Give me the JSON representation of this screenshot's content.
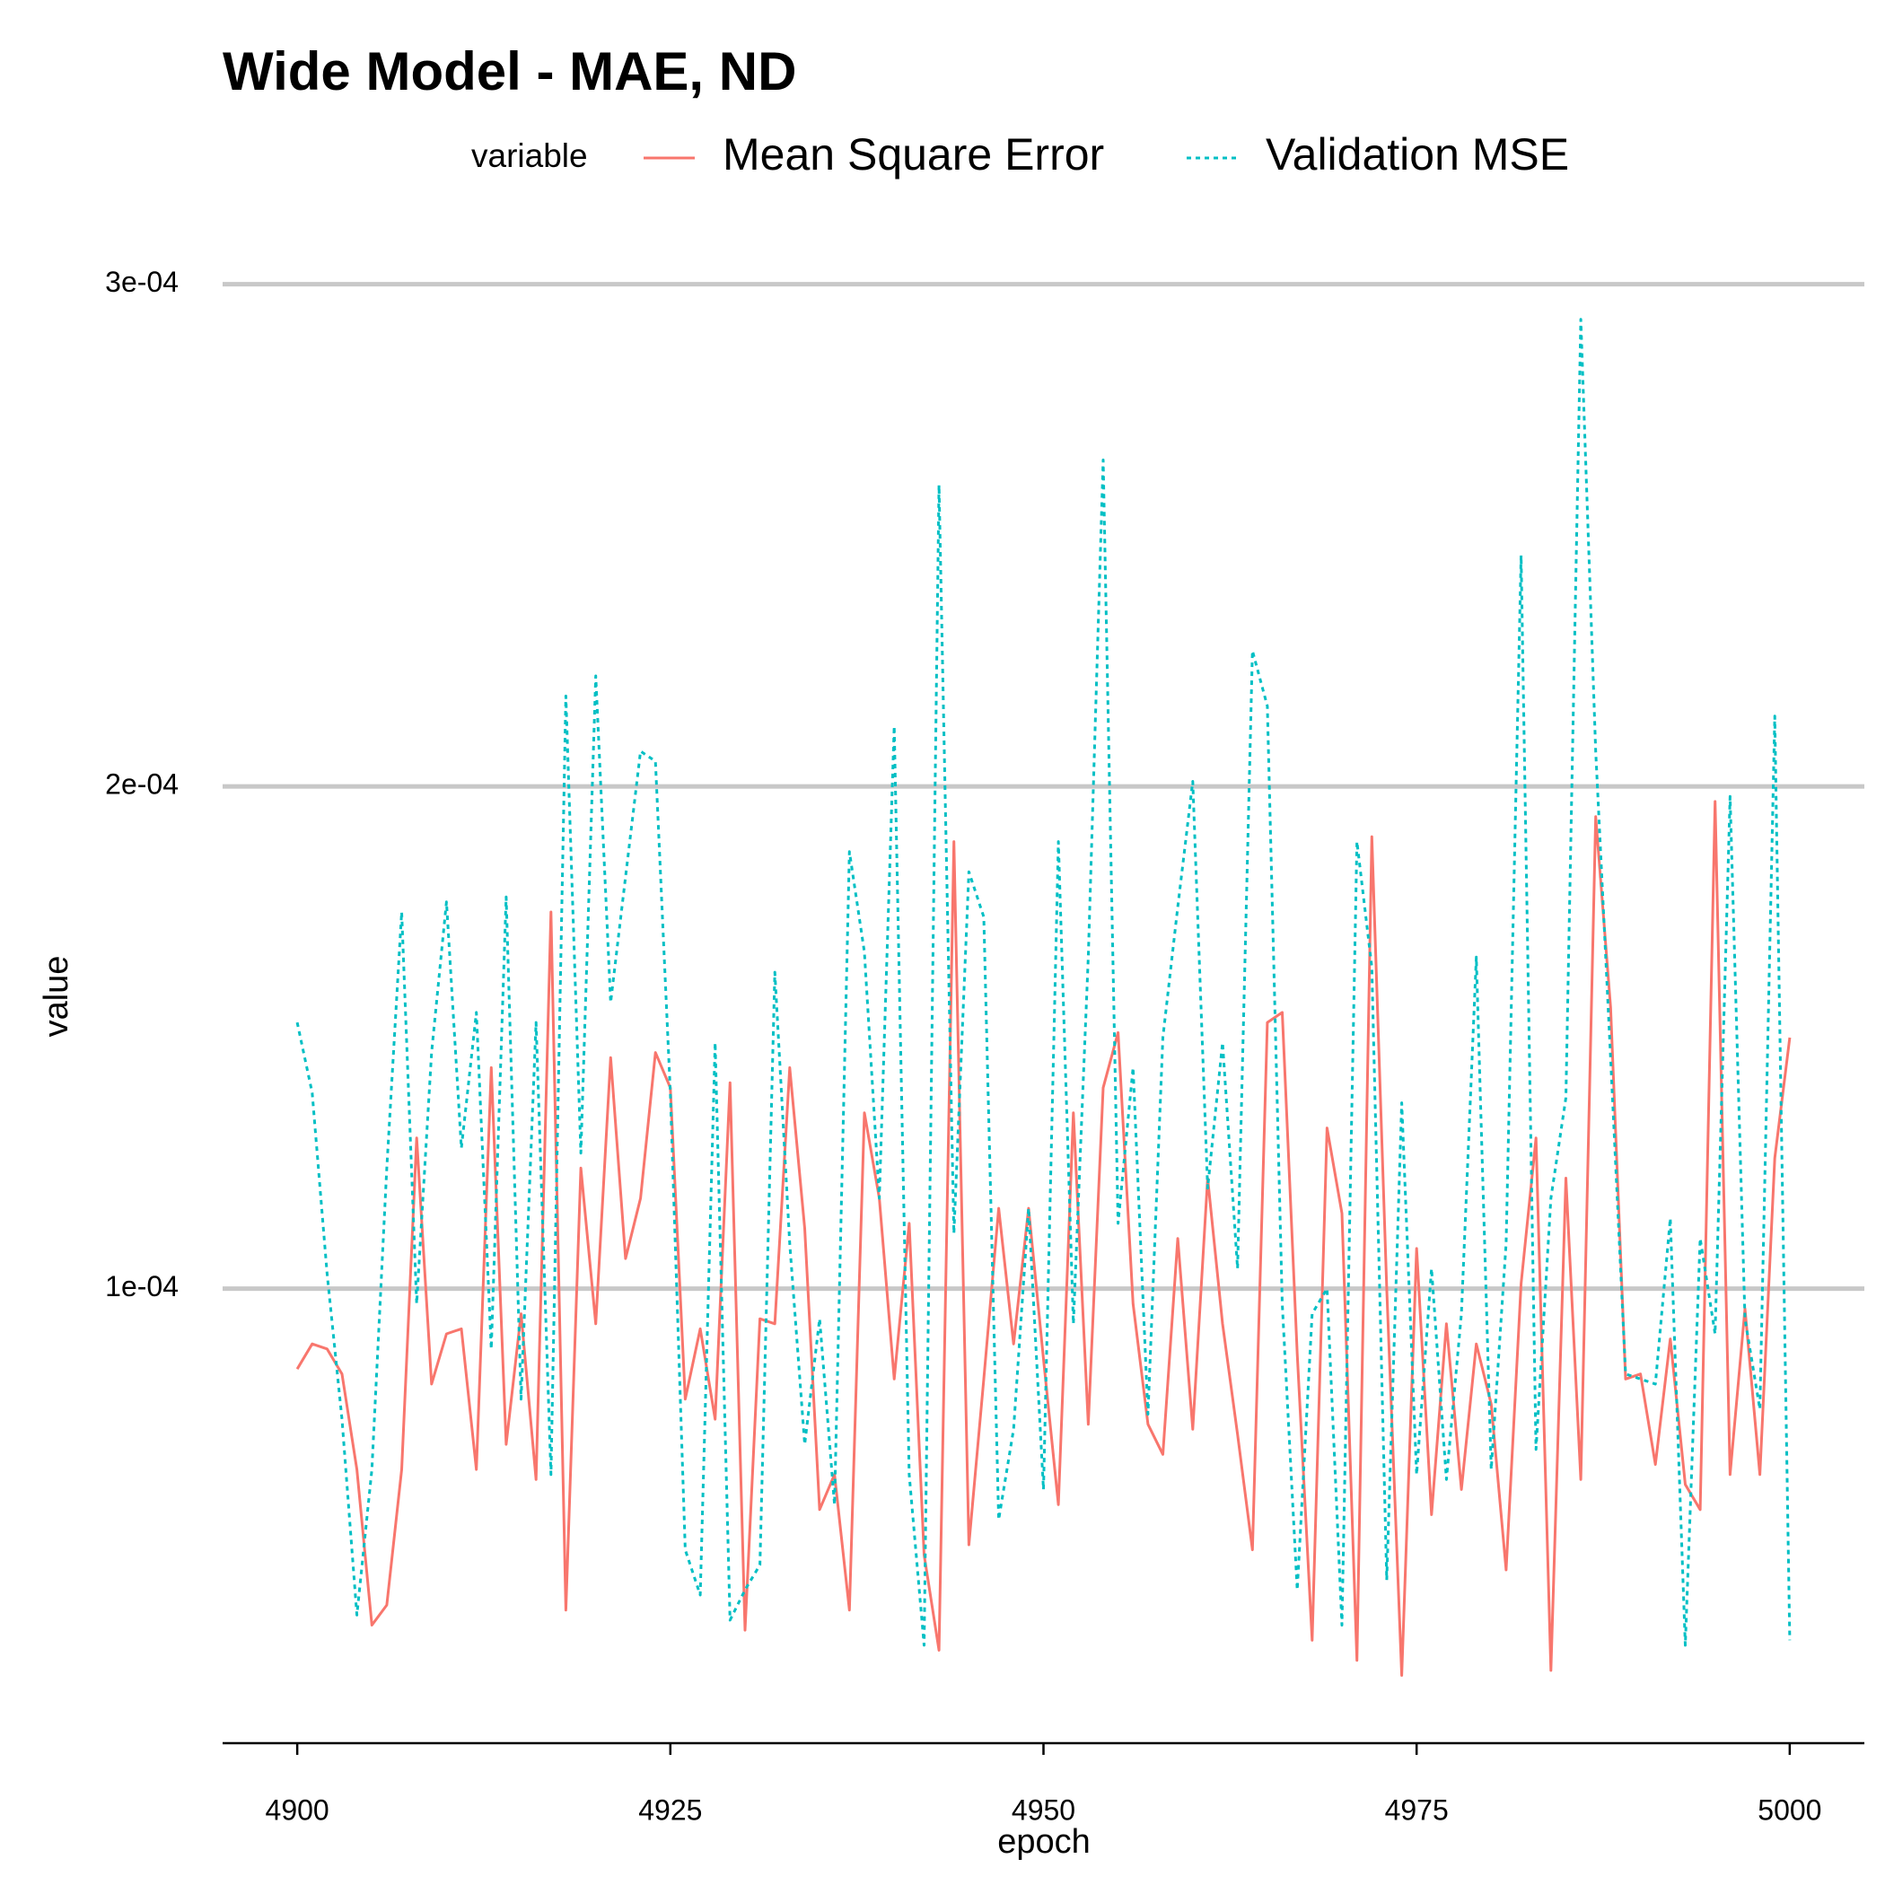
{
  "chart_data": {
    "type": "line",
    "title": "Wide Model - MAE, ND",
    "xlabel": "epoch",
    "ylabel": "value",
    "legend_title": "variable",
    "x": [
      4900,
      4901,
      4902,
      4903,
      4904,
      4905,
      4906,
      4907,
      4908,
      4909,
      4910,
      4911,
      4912,
      4913,
      4914,
      4915,
      4916,
      4917,
      4918,
      4919,
      4920,
      4921,
      4922,
      4923,
      4924,
      4925,
      4926,
      4927,
      4928,
      4929,
      4930,
      4931,
      4932,
      4933,
      4934,
      4935,
      4936,
      4937,
      4938,
      4939,
      4940,
      4941,
      4942,
      4943,
      4944,
      4945,
      4946,
      4947,
      4948,
      4949,
      4950,
      4951,
      4952,
      4953,
      4954,
      4955,
      4956,
      4957,
      4958,
      4959,
      4960,
      4961,
      4962,
      4963,
      4964,
      4965,
      4966,
      4967,
      4968,
      4969,
      4970,
      4971,
      4972,
      4973,
      4974,
      4975,
      4976,
      4977,
      4978,
      4979,
      4980,
      4981,
      4982,
      4983,
      4984,
      4985,
      4986,
      4987,
      4988,
      4989,
      4990,
      4991,
      4992,
      4993,
      4994,
      4995,
      4996,
      4997,
      4998,
      4999,
      5000
    ],
    "series": [
      {
        "name": "Mean Square Error",
        "color": "#f8766d",
        "dash": "solid",
        "values": [
          8.4e-05,
          8.9e-05,
          8.8e-05,
          8.3e-05,
          6.4e-05,
          3.3e-05,
          3.7e-05,
          6.4e-05,
          0.00013,
          8.1e-05,
          9.1e-05,
          9.2e-05,
          6.4e-05,
          0.000144,
          6.9e-05,
          9.5e-05,
          6.2e-05,
          0.000175,
          3.6e-05,
          0.000124,
          9.3e-05,
          0.000146,
          0.000106,
          0.000118,
          0.000147,
          0.00014,
          7.8e-05,
          9.2e-05,
          7.4e-05,
          0.000141,
          3.2e-05,
          9.4e-05,
          9.3e-05,
          0.000144,
          0.000112,
          5.6e-05,
          6.3e-05,
          3.6e-05,
          0.000135,
          0.000118,
          8.2e-05,
          0.000113,
          4.7e-05,
          2.8e-05,
          0.000189,
          4.9e-05,
          8.2e-05,
          0.000116,
          8.9e-05,
          0.000116,
          8.6e-05,
          5.7e-05,
          0.000135,
          7.3e-05,
          0.00014,
          0.000151,
          9.7e-05,
          7.3e-05,
          6.7e-05,
          0.00011,
          7.2e-05,
          0.000122,
          9.3e-05,
          7.1e-05,
          4.8e-05,
          0.000153,
          0.000155,
          8.7e-05,
          3e-05,
          0.000132,
          0.000115,
          2.6e-05,
          0.00019,
          0.0001,
          2.3e-05,
          0.000108,
          5.5e-05,
          9.3e-05,
          6e-05,
          8.9e-05,
          7.7e-05,
          4.4e-05,
          0.000101,
          0.00013,
          2.4e-05,
          0.000122,
          6.2e-05,
          0.000194,
          0.000156,
          8.2e-05,
          8.3e-05,
          6.5e-05,
          9e-05,
          6.1e-05,
          5.6e-05,
          0.000197,
          6.3e-05,
          9.6e-05,
          6.3e-05,
          0.000126,
          0.00015
        ]
      },
      {
        "name": "Validation MSE",
        "color": "#00bfc4",
        "dash": "dotted",
        "values": [
          0.000153,
          0.000139,
          0.000103,
          7.4e-05,
          3.5e-05,
          6.4e-05,
          0.000124,
          0.000175,
          9.7e-05,
          0.000147,
          0.000177,
          0.000128,
          0.000155,
          8.8e-05,
          0.000178,
          7.8e-05,
          0.000153,
          6.3e-05,
          0.000218,
          0.000127,
          0.000222,
          0.000157,
          0.000182,
          0.000207,
          0.000205,
          0.000139,
          4.8e-05,
          3.9e-05,
          0.000149,
          3.4e-05,
          4e-05,
          4.5e-05,
          0.000163,
          0.000109,
          6.9e-05,
          9.4e-05,
          5.7e-05,
          0.000187,
          0.000167,
          0.000118,
          0.000212,
          6.3e-05,
          2.9e-05,
          0.00026,
          0.000111,
          0.000183,
          0.000174,
          5.4e-05,
          7.2e-05,
          0.000116,
          6e-05,
          0.000189,
          9.3e-05,
          0.000166,
          0.000265,
          0.000113,
          0.000144,
          7.5e-05,
          0.00015,
          0.000176,
          0.000201,
          0.00012,
          0.000149,
          0.000104,
          0.000227,
          0.000216,
          9.7e-05,
          4e-05,
          9.5e-05,
          0.0001,
          3.3e-05,
          0.000189,
          0.000164,
          4.2e-05,
          0.000137,
          6.3e-05,
          0.000104,
          6.2e-05,
          9.5e-05,
          0.000166,
          6.4e-05,
          0.000109,
          0.000246,
          6.8e-05,
          0.000118,
          0.000138,
          0.000293,
          0.000207,
          0.000146,
          8.3e-05,
          8.2e-05,
          8.1e-05,
          0.000114,
          2.9e-05,
          0.00011,
          9.1e-05,
          0.000198,
          9.4e-05,
          7.6e-05,
          0.000214,
          3e-05
        ]
      }
    ],
    "xlim": [
      4895,
      5005
    ],
    "xticks": [
      4900,
      4925,
      4950,
      4975,
      5000
    ],
    "ylim": [
      9.5e-06,
      0.000306
    ],
    "yticks": [
      {
        "value": 0.0001,
        "label": "1e-04"
      },
      {
        "value": 0.0002,
        "label": "2e-04"
      },
      {
        "value": 0.0003,
        "label": "3e-04"
      }
    ],
    "grid": true,
    "legend": "top"
  }
}
